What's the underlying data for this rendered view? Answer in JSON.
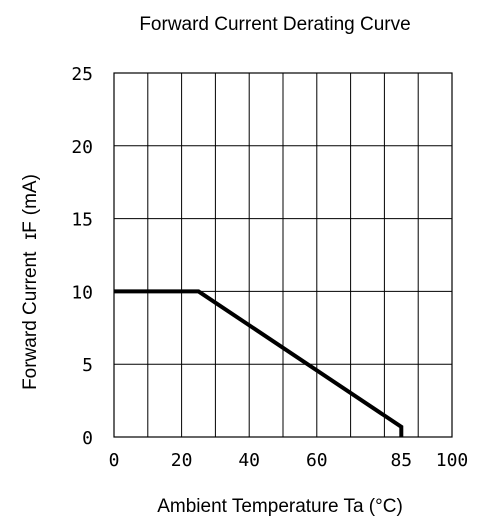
{
  "chart_data": {
    "type": "line",
    "title": "Forward Current Derating Curve",
    "xlabel": "Ambient Temperature Ta (°C)",
    "ylabel": "Forward Current",
    "ylabel_symbol": "ɪF",
    "ylabel_unit": "(mA)",
    "xlim": [
      0,
      100
    ],
    "ylim": [
      0,
      25
    ],
    "grid": true,
    "x_grid_step": 10,
    "y_grid_step": 5,
    "x_ticks": [
      {
        "value": 0,
        "label": "0"
      },
      {
        "value": 20,
        "label": "20"
      },
      {
        "value": 40,
        "label": "40"
      },
      {
        "value": 60,
        "label": "60"
      },
      {
        "value": 85,
        "label": "85"
      },
      {
        "value": 100,
        "label": "100"
      }
    ],
    "y_ticks": [
      {
        "value": 0,
        "label": "0"
      },
      {
        "value": 5,
        "label": "5"
      },
      {
        "value": 10,
        "label": "10"
      },
      {
        "value": 15,
        "label": "15"
      },
      {
        "value": 20,
        "label": "20"
      },
      {
        "value": 25,
        "label": "25"
      }
    ],
    "series": [
      {
        "color": "#000000",
        "points": [
          {
            "x": 0,
            "y": 10
          },
          {
            "x": 25,
            "y": 10
          },
          {
            "x": 85,
            "y": 0.7
          },
          {
            "x": 85,
            "y": 0
          }
        ]
      }
    ]
  }
}
